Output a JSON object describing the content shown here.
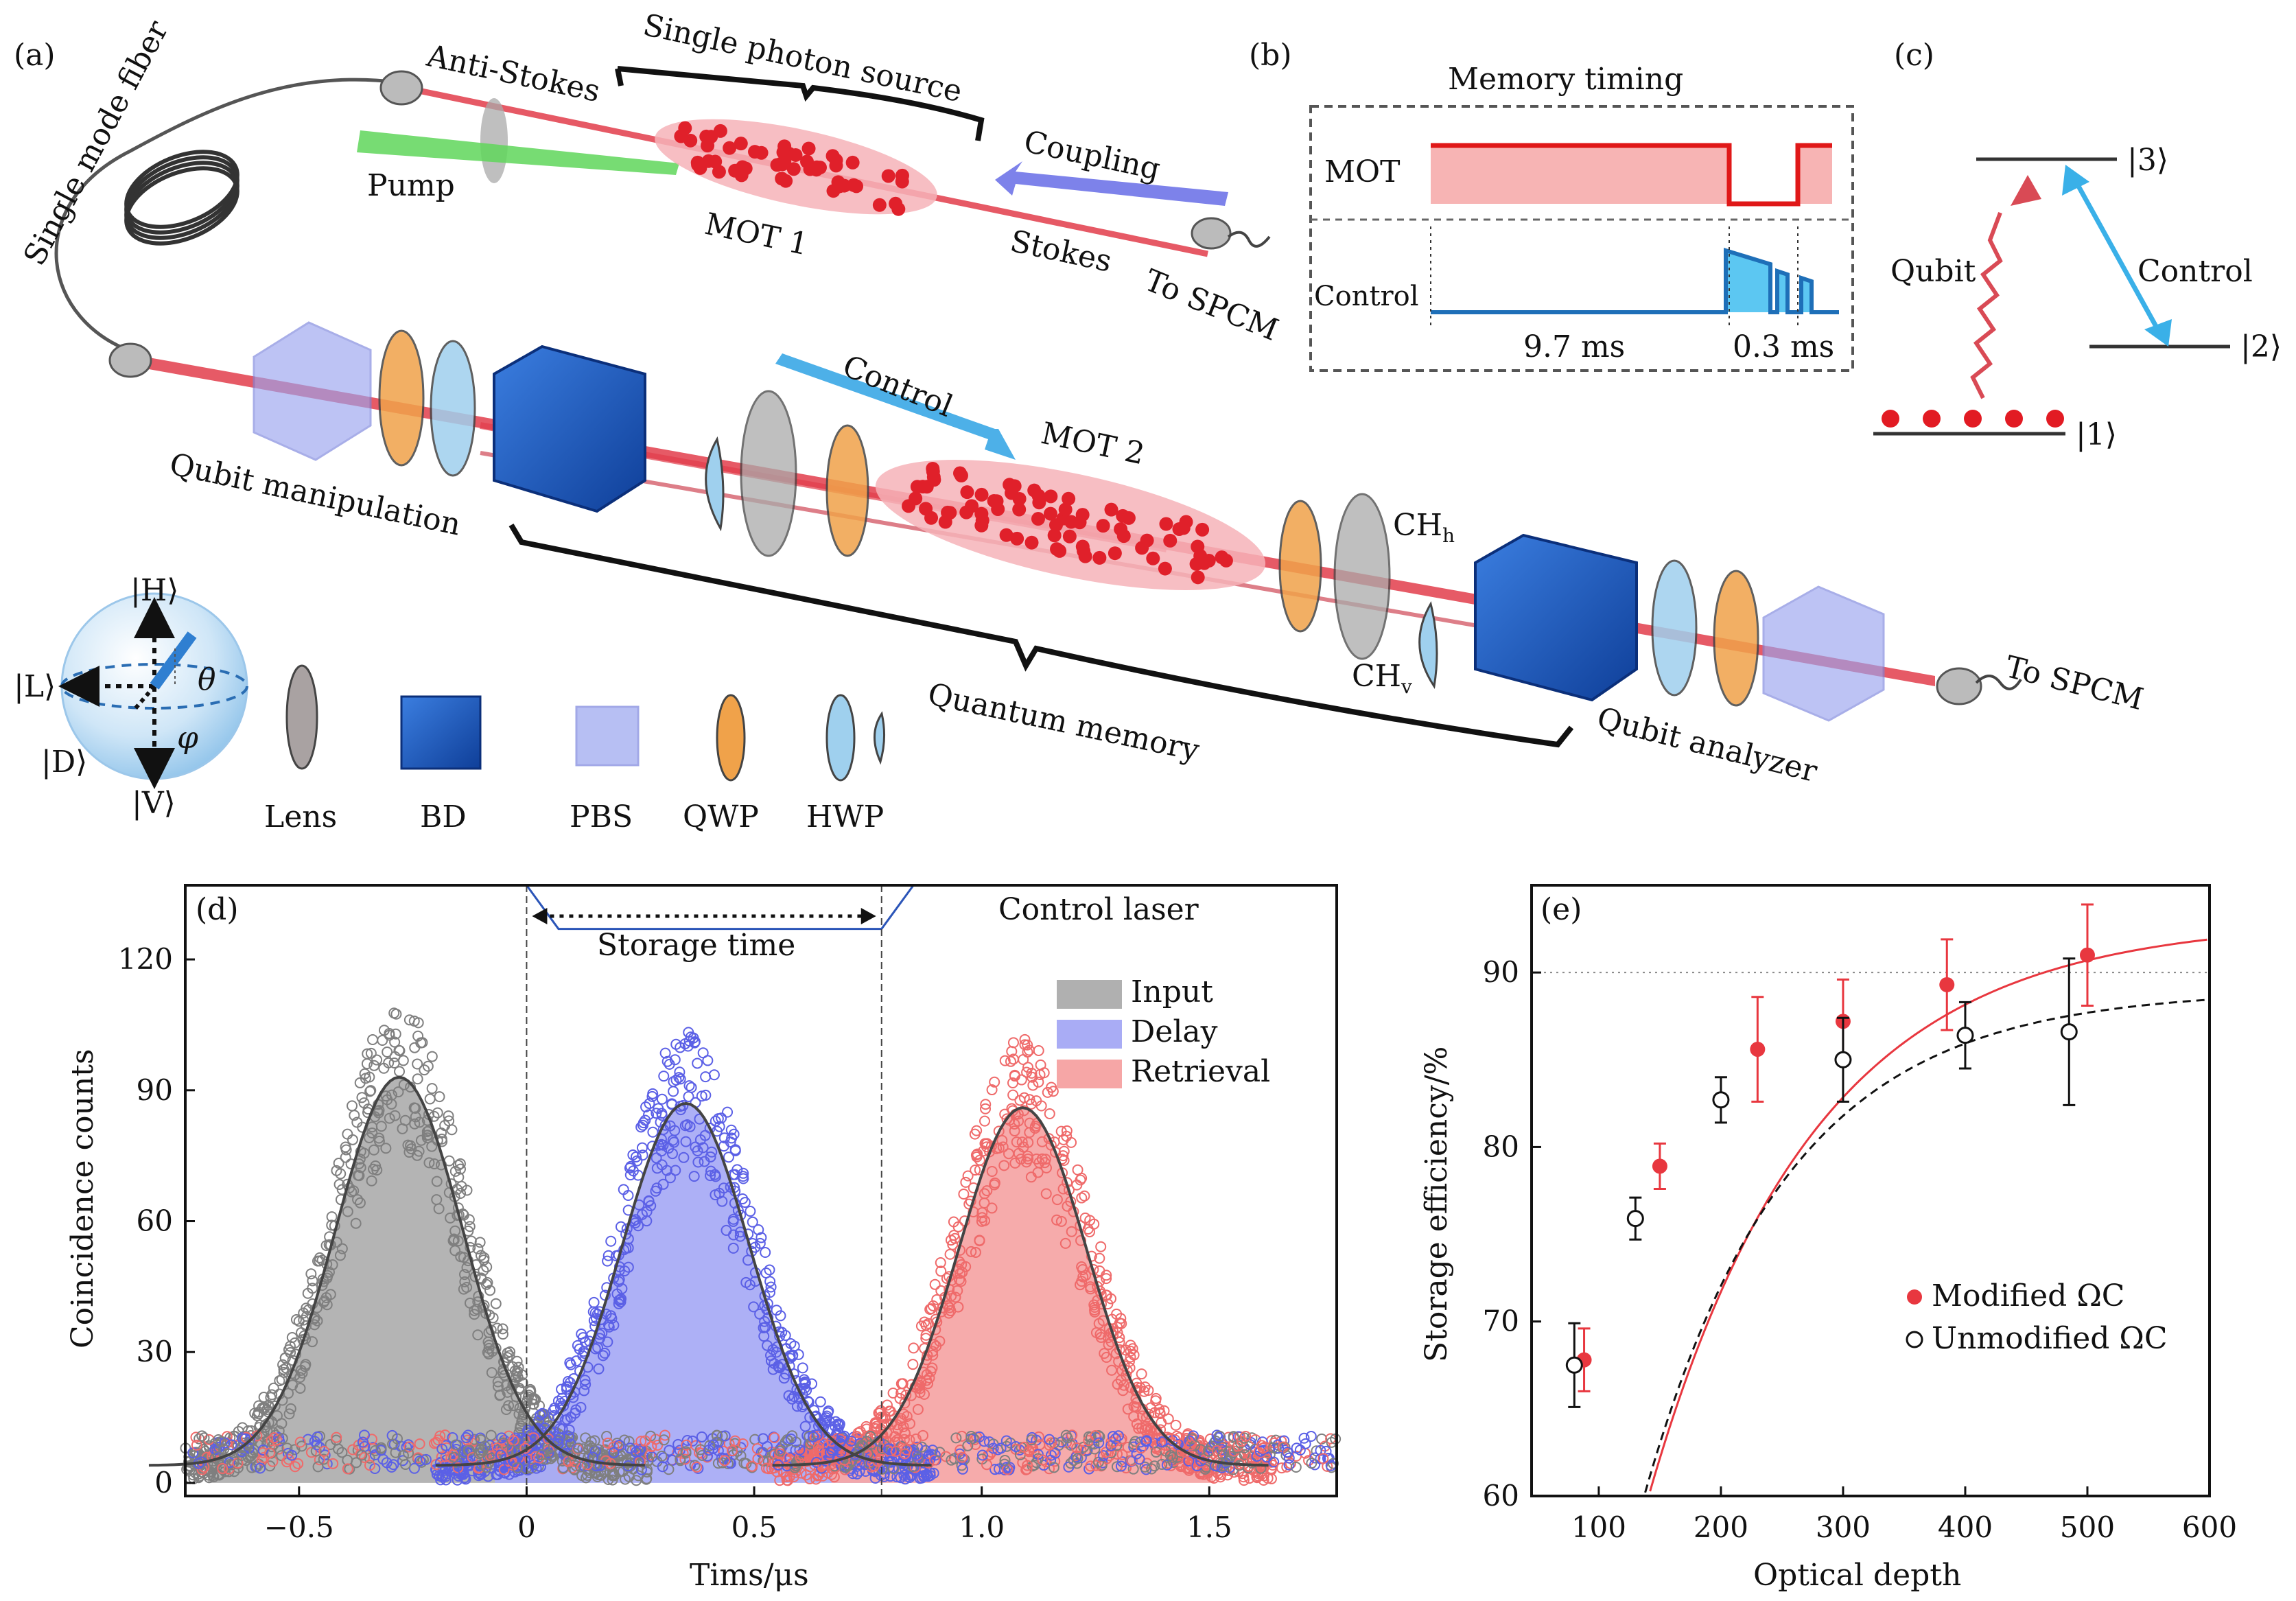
{
  "panel_labels": {
    "a": "(a)",
    "b": "(b)",
    "c": "(c)",
    "d": "(d)",
    "e": "(e)"
  },
  "panel_a": {
    "single_mode_fiber": "Single mode fiber",
    "anti_stokes": "Anti-Stokes",
    "single_photon_source": "Single photon source",
    "pump": "Pump",
    "mot1": "MOT 1",
    "coupling": "Coupling",
    "stokes": "Stokes",
    "to_spcm_top": "To SPCM",
    "control": "Control",
    "mot2": "MOT 2",
    "qubit_manipulation": "Qubit manipulation",
    "ch_h": "CHh",
    "ch_v": "CHv",
    "quantum_memory": "Quantum memory",
    "qubit_analyzer": "Qubit analyzer",
    "to_spcm_right": "To SPCM",
    "sphere": {
      "H": "|H⟩",
      "V": "|V⟩",
      "L": "|L⟩",
      "D": "|D⟩",
      "theta": "θ",
      "phi": "φ"
    },
    "legend": [
      "Lens",
      "BD",
      "PBS",
      "QWP",
      "HWP"
    ],
    "colors": {
      "beam": "#e23d4b",
      "bd": "#1f5fc7",
      "pbs": "#9aa4ef",
      "qwp": "#f0a24a",
      "hwp": "#9fd0ee",
      "atoms": "#e0202a",
      "cloud": "#f6b3b9",
      "pump": "#5fd65a",
      "coupling": "#6f74e8",
      "control": "#3aa7e6"
    }
  },
  "panel_b": {
    "title": "Memory timing",
    "mot": "MOT",
    "control": "Control",
    "t1": "9.7 ms",
    "t2": "0.3 ms",
    "colors": {
      "mot": "#e01818",
      "mot_fill": "#f7b4b4",
      "control": "#1e6fb8",
      "control_fill": "#5cc7f2"
    }
  },
  "panel_c": {
    "level1": "|1⟩",
    "level2": "|2⟩",
    "level3": "|3⟩",
    "qubit": "Qubit",
    "control": "Control",
    "colors": {
      "qubit": "#d94a55",
      "control": "#3ab0e8",
      "atoms": "#e21b23"
    }
  },
  "chart_data": [
    {
      "panel": "d",
      "type": "scatter",
      "xlabel": "Tims/μs",
      "ylabel": "Coincidence counts",
      "xlim": [
        -0.75,
        1.78
      ],
      "ylim": [
        -3,
        137
      ],
      "xticks": [
        -0.5,
        0,
        0.5,
        1.0,
        1.5
      ],
      "xtick_labels": [
        "−0.5",
        "0",
        "0.5",
        "1.0",
        "1.5"
      ],
      "yticks": [
        0,
        30,
        60,
        90,
        120
      ],
      "ytick_labels": [
        "0",
        "30",
        "60",
        "90",
        "120"
      ],
      "control_laser_label": "Control laser",
      "storage_time_label": "Storage time",
      "control_laser_levels": {
        "high": 137,
        "low": 127
      },
      "storage_window": [
        0.0,
        0.78
      ],
      "legend_position": "top-right",
      "series": [
        {
          "name": "Input",
          "fit_center": -0.28,
          "fit_amp": 89,
          "fit_sigma": 0.14,
          "baseline": 4,
          "color": "#7f7f7f",
          "fill": "#b0b0b0"
        },
        {
          "name": "Delay",
          "fit_center": 0.35,
          "fit_amp": 83,
          "fit_sigma": 0.14,
          "baseline": 4,
          "color": "#5b60e6",
          "fill": "#a9acf5"
        },
        {
          "name": "Retrieval",
          "fit_center": 1.09,
          "fit_amp": 82,
          "fit_sigma": 0.14,
          "baseline": 4,
          "color": "#ef6a6a",
          "fill": "#f6a6a6"
        }
      ]
    },
    {
      "panel": "e",
      "type": "scatter",
      "xlabel": "Optical depth",
      "ylabel": "Storage efficiency/%",
      "xlim": [
        45,
        600
      ],
      "ylim": [
        60,
        95
      ],
      "xticks": [
        100,
        200,
        300,
        400,
        500,
        600
      ],
      "xtick_labels": [
        "100",
        "200",
        "300",
        "400",
        "500",
        "600"
      ],
      "yticks": [
        60,
        70,
        80,
        90
      ],
      "ytick_labels": [
        "60",
        "70",
        "80",
        "90"
      ],
      "reference_line": 90,
      "legend_position": "bottom-right",
      "series": [
        {
          "name": "Modified ΩC",
          "marker": "filled",
          "color": "#e8373f",
          "x": [
            88,
            150,
            230,
            300,
            385,
            500
          ],
          "y": [
            67.8,
            78.9,
            85.6,
            87.2,
            89.3,
            91.0
          ],
          "err": [
            1.8,
            1.3,
            3.0,
            2.4,
            2.6,
            2.9
          ]
        },
        {
          "name": "Unmodified ΩC",
          "marker": "open",
          "color": "#111111",
          "x": [
            80,
            130,
            200,
            300,
            400,
            485
          ],
          "y": [
            67.5,
            75.9,
            82.7,
            85.0,
            86.4,
            86.6
          ],
          "err": [
            2.4,
            1.2,
            1.3,
            2.4,
            1.9,
            4.2
          ]
        }
      ]
    }
  ]
}
